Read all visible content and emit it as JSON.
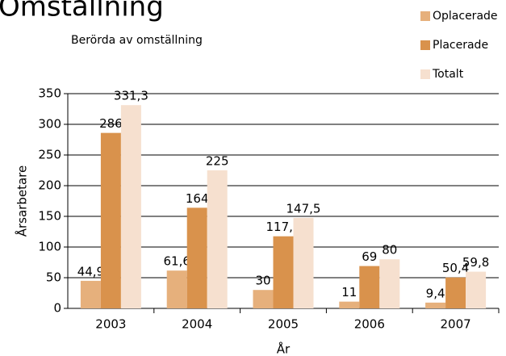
{
  "chart_data": {
    "type": "bar",
    "title": "Omställning",
    "subtitle": "Berörda av omställning",
    "x_label": "År",
    "y_label": "Årsarbetare",
    "categories": [
      "2003",
      "2004",
      "2005",
      "2006",
      "2007"
    ],
    "series": [
      {
        "name": "Oplacerade",
        "color": "#e6b07c",
        "values": [
          44.9,
          61.6,
          30,
          11,
          9.4
        ],
        "value_labels": [
          "44,9",
          "61,6",
          "30",
          "11",
          "9,4"
        ]
      },
      {
        "name": "Placerade",
        "color": "#d9924c",
        "values": [
          286,
          164,
          117.5,
          69,
          50.4
        ],
        "value_labels": [
          "286",
          "164",
          "117,5",
          "69",
          "50,4"
        ]
      },
      {
        "name": "Totalt",
        "color": "#f6e0cf",
        "values": [
          331.3,
          225,
          147.5,
          80,
          59.8
        ],
        "value_labels": [
          "331,3",
          "225",
          "147,5",
          "80",
          "59,8"
        ]
      }
    ],
    "ylim": [
      0,
      350
    ],
    "yticks": [
      0,
      50,
      100,
      150,
      200,
      250,
      300,
      350
    ],
    "grid": true,
    "legend": "top-right"
  }
}
